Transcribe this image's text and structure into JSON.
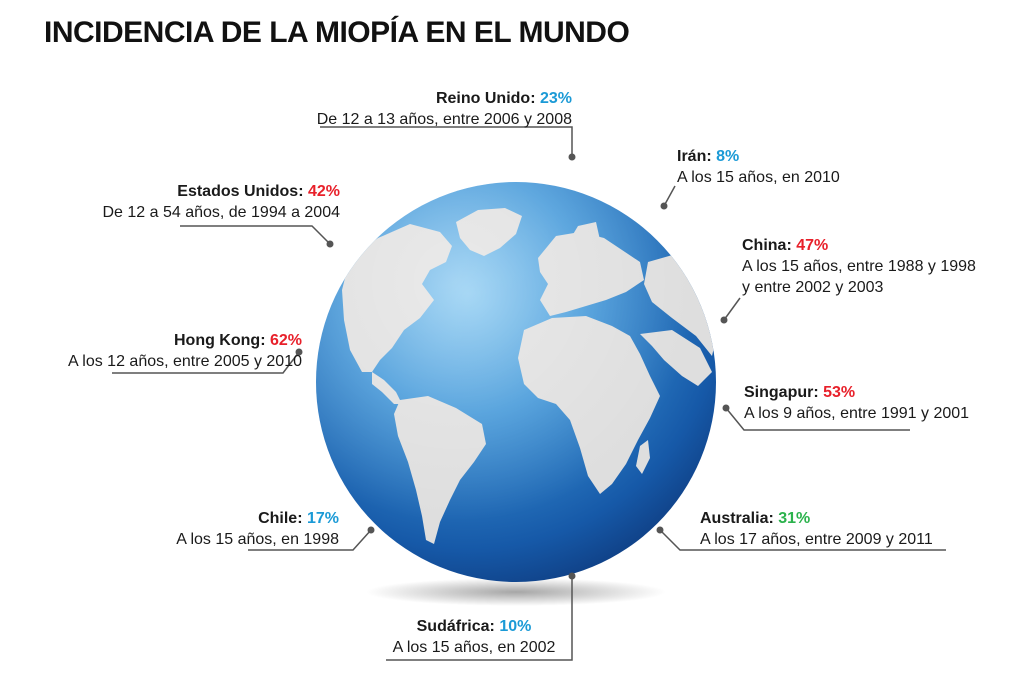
{
  "title": "INCIDENCIA DE LA MIOPÍA EN EL MUNDO",
  "colors": {
    "high": "#e8202a",
    "mid": "#2bb24c",
    "low": "#1b9ad6",
    "ocean_light": "#4aa3de",
    "ocean_dark": "#0d3d86",
    "land": "#dcdcdc",
    "leader": "#555555"
  },
  "callouts": [
    {
      "id": "reino-unido",
      "country": "Reino Unido",
      "pct": "23%",
      "level": "low",
      "desc_lines": [
        "De 12 a 13 años, entre 2006 y 2008"
      ]
    },
    {
      "id": "iran",
      "country": "Irán",
      "pct": "8%",
      "level": "low",
      "desc_lines": [
        "A los 15 años, en 2010"
      ]
    },
    {
      "id": "estados-unidos",
      "country": "Estados Unidos",
      "pct": "42%",
      "level": "high",
      "desc_lines": [
        "De 12 a 54 años, de 1994 a 2004"
      ]
    },
    {
      "id": "china",
      "country": "China",
      "pct": "47%",
      "level": "high",
      "desc_lines": [
        "A los 15 años, entre 1988 y 1998",
        "y entre 2002 y 2003"
      ]
    },
    {
      "id": "hong-kong",
      "country": "Hong Kong",
      "pct": "62%",
      "level": "high",
      "desc_lines": [
        "A los 12 años, entre 2005 y 2010"
      ]
    },
    {
      "id": "singapur",
      "country": "Singapur",
      "pct": "53%",
      "level": "high",
      "desc_lines": [
        "A los 9 años, entre 1991 y 2001"
      ]
    },
    {
      "id": "chile",
      "country": "Chile",
      "pct": "17%",
      "level": "low",
      "desc_lines": [
        "A los 15 años, en 1998"
      ]
    },
    {
      "id": "australia",
      "country": "Australia",
      "pct": "31%",
      "level": "mid",
      "desc_lines": [
        "A los 17 años, entre 2009 y 2011"
      ]
    },
    {
      "id": "sudafrica",
      "country": "Sudáfrica",
      "pct": "10%",
      "level": "low",
      "desc_lines": [
        "A los 15 años, en 2002"
      ]
    }
  ]
}
